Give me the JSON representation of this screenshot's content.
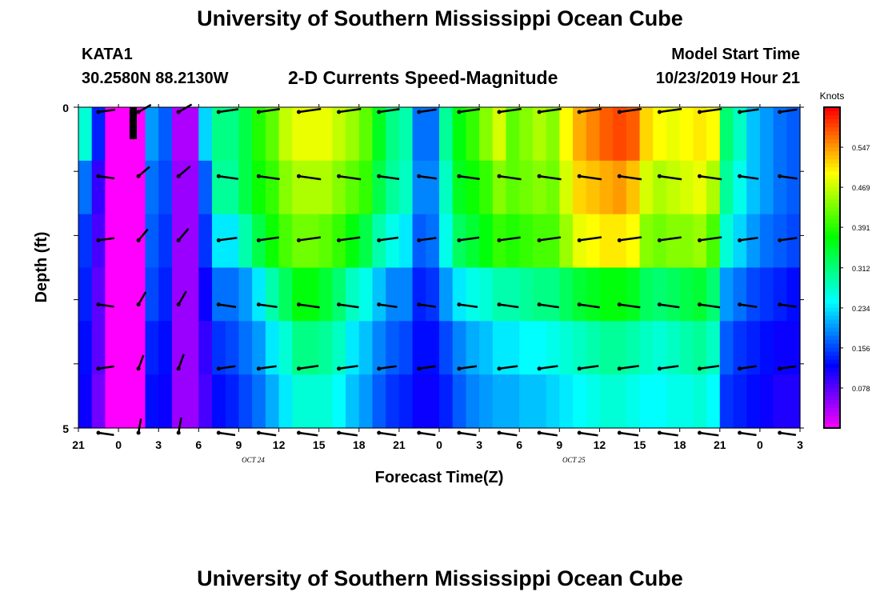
{
  "header": {
    "title": "University of Southern Mississippi Ocean Cube",
    "station": "KATA1",
    "coordinates": "30.2580N 88.2130W",
    "subtitle": "2-D Currents Speed-Magnitude",
    "model_start_label": "Model Start Time",
    "model_start_time": "10/23/2019 Hour 21"
  },
  "footer": {
    "title": "University of Southern Mississippi Ocean Cube"
  },
  "chart_data": {
    "type": "heatmap",
    "title": "2-D Currents Speed-Magnitude",
    "xlabel": "Forecast Time(Z)",
    "ylabel": "Depth (ft)",
    "x_tick_labels": [
      "21",
      "0",
      "3",
      "6",
      "9",
      "12",
      "15",
      "18",
      "21",
      "0",
      "3",
      "6",
      "9",
      "12",
      "15",
      "18",
      "21",
      "0",
      "3"
    ],
    "x_date_labels": [
      {
        "label": "OCT 24",
        "tick_index": 4
      },
      {
        "label": "OCT 25",
        "tick_index": 12
      }
    ],
    "y_tick_labels": [
      "0",
      "5"
    ],
    "ylim": [
      0,
      5
    ],
    "colorbar": {
      "title": "Knots",
      "ticks": [
        0.078,
        0.156,
        0.234,
        0.312,
        0.391,
        0.469,
        0.547
      ],
      "range": [
        0,
        0.625
      ]
    },
    "depth_levels": [
      0,
      1,
      2,
      3,
      4,
      5
    ],
    "time_steps_hours": 54,
    "speed_profiles": [
      [
        0.27,
        0.14,
        0.0,
        0.0,
        0.0,
        0.2,
        0.17,
        0.04,
        0.04,
        0.23,
        0.31,
        0.31,
        0.34,
        0.39,
        0.42,
        0.47,
        0.49,
        0.49,
        0.49,
        0.47,
        0.45,
        0.42,
        0.36,
        0.31,
        0.29,
        0.18,
        0.18,
        0.3,
        0.37,
        0.4,
        0.44,
        0.48,
        0.42,
        0.44,
        0.46,
        0.44,
        0.5,
        0.54,
        0.56,
        0.58,
        0.59,
        0.58,
        0.52,
        0.5,
        0.49,
        0.5,
        0.51,
        0.5,
        0.32,
        0.28,
        0.22,
        0.2,
        0.18,
        0.17
      ],
      [
        0.18,
        0.1,
        0.0,
        0.0,
        0.0,
        0.18,
        0.16,
        0.05,
        0.05,
        0.17,
        0.3,
        0.3,
        0.34,
        0.38,
        0.4,
        0.44,
        0.46,
        0.46,
        0.46,
        0.44,
        0.42,
        0.4,
        0.34,
        0.3,
        0.28,
        0.19,
        0.19,
        0.28,
        0.36,
        0.38,
        0.4,
        0.44,
        0.42,
        0.43,
        0.44,
        0.43,
        0.48,
        0.52,
        0.53,
        0.54,
        0.55,
        0.53,
        0.48,
        0.46,
        0.47,
        0.48,
        0.49,
        0.46,
        0.3,
        0.26,
        0.22,
        0.2,
        0.18,
        0.17
      ],
      [
        0.15,
        0.09,
        0.0,
        0.0,
        0.0,
        0.17,
        0.15,
        0.05,
        0.05,
        0.15,
        0.24,
        0.24,
        0.29,
        0.34,
        0.38,
        0.41,
        0.43,
        0.43,
        0.42,
        0.4,
        0.37,
        0.34,
        0.29,
        0.26,
        0.24,
        0.17,
        0.18,
        0.26,
        0.33,
        0.35,
        0.37,
        0.4,
        0.39,
        0.4,
        0.41,
        0.41,
        0.45,
        0.49,
        0.5,
        0.51,
        0.51,
        0.5,
        0.44,
        0.43,
        0.44,
        0.44,
        0.45,
        0.41,
        0.27,
        0.23,
        0.2,
        0.18,
        0.17,
        0.16
      ],
      [
        0.14,
        0.08,
        0.0,
        0.0,
        0.0,
        0.16,
        0.14,
        0.05,
        0.05,
        0.12,
        0.18,
        0.18,
        0.2,
        0.24,
        0.29,
        0.33,
        0.37,
        0.37,
        0.35,
        0.32,
        0.28,
        0.26,
        0.22,
        0.19,
        0.19,
        0.14,
        0.15,
        0.2,
        0.24,
        0.26,
        0.27,
        0.29,
        0.29,
        0.3,
        0.31,
        0.31,
        0.33,
        0.35,
        0.36,
        0.37,
        0.37,
        0.36,
        0.33,
        0.32,
        0.33,
        0.34,
        0.35,
        0.32,
        0.2,
        0.18,
        0.16,
        0.15,
        0.14,
        0.13
      ],
      [
        0.13,
        0.08,
        0.0,
        0.0,
        0.0,
        0.14,
        0.13,
        0.05,
        0.05,
        0.1,
        0.15,
        0.16,
        0.18,
        0.2,
        0.24,
        0.27,
        0.31,
        0.31,
        0.3,
        0.28,
        0.24,
        0.22,
        0.19,
        0.17,
        0.16,
        0.13,
        0.13,
        0.16,
        0.19,
        0.21,
        0.22,
        0.24,
        0.24,
        0.25,
        0.25,
        0.26,
        0.27,
        0.28,
        0.29,
        0.3,
        0.3,
        0.29,
        0.28,
        0.27,
        0.28,
        0.29,
        0.3,
        0.28,
        0.17,
        0.15,
        0.14,
        0.13,
        0.12,
        0.12
      ],
      [
        0.12,
        0.07,
        0.0,
        0.0,
        0.0,
        0.13,
        0.12,
        0.05,
        0.05,
        0.09,
        0.13,
        0.14,
        0.16,
        0.18,
        0.21,
        0.24,
        0.27,
        0.27,
        0.27,
        0.25,
        0.22,
        0.2,
        0.17,
        0.15,
        0.14,
        0.12,
        0.12,
        0.14,
        0.17,
        0.19,
        0.2,
        0.21,
        0.21,
        0.22,
        0.22,
        0.23,
        0.24,
        0.25,
        0.26,
        0.27,
        0.27,
        0.26,
        0.25,
        0.25,
        0.26,
        0.26,
        0.27,
        0.25,
        0.15,
        0.14,
        0.13,
        0.12,
        0.11,
        0.11
      ]
    ]
  }
}
